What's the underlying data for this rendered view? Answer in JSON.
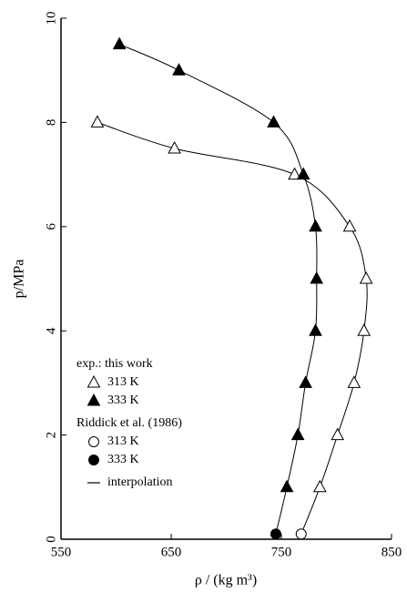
{
  "chart_data": {
    "type": "scatter",
    "xlabel": "ρ / (kg m³)",
    "ylabel": "p/MPa",
    "xlim": [
      550,
      850
    ],
    "xticks": [
      550,
      650,
      750,
      850
    ],
    "ylim": [
      0,
      10
    ],
    "yticks": [
      0,
      2,
      4,
      6,
      8,
      10
    ],
    "color": "#000000",
    "groups": [
      {
        "title": "exp.: this work",
        "series": [
          {
            "name": "313 K",
            "marker": "triangle",
            "filled": false,
            "x": [
              583,
              653,
              762,
              812,
              827,
              825,
              816,
              801,
              785
            ],
            "values": [
              8,
              7.5,
              7,
              6,
              5,
              4,
              3,
              2,
              1
            ]
          },
          {
            "name": "333 K",
            "marker": "triangle",
            "filled": true,
            "x": [
              603,
              657,
              743,
              770,
              781,
              782,
              781,
              772,
              765,
              755
            ],
            "values": [
              9.5,
              9,
              8,
              7,
              6,
              5,
              4,
              3,
              2,
              1
            ]
          }
        ]
      },
      {
        "title": "Riddick et al. (1986)",
        "series": [
          {
            "name": "313 K",
            "marker": "circle",
            "filled": false,
            "x": [
              768
            ],
            "values": [
              0.1
            ]
          },
          {
            "name": "333 K",
            "marker": "circle",
            "filled": true,
            "x": [
              745
            ],
            "values": [
              0.1
            ]
          }
        ]
      }
    ],
    "line_label": "interpolation"
  }
}
